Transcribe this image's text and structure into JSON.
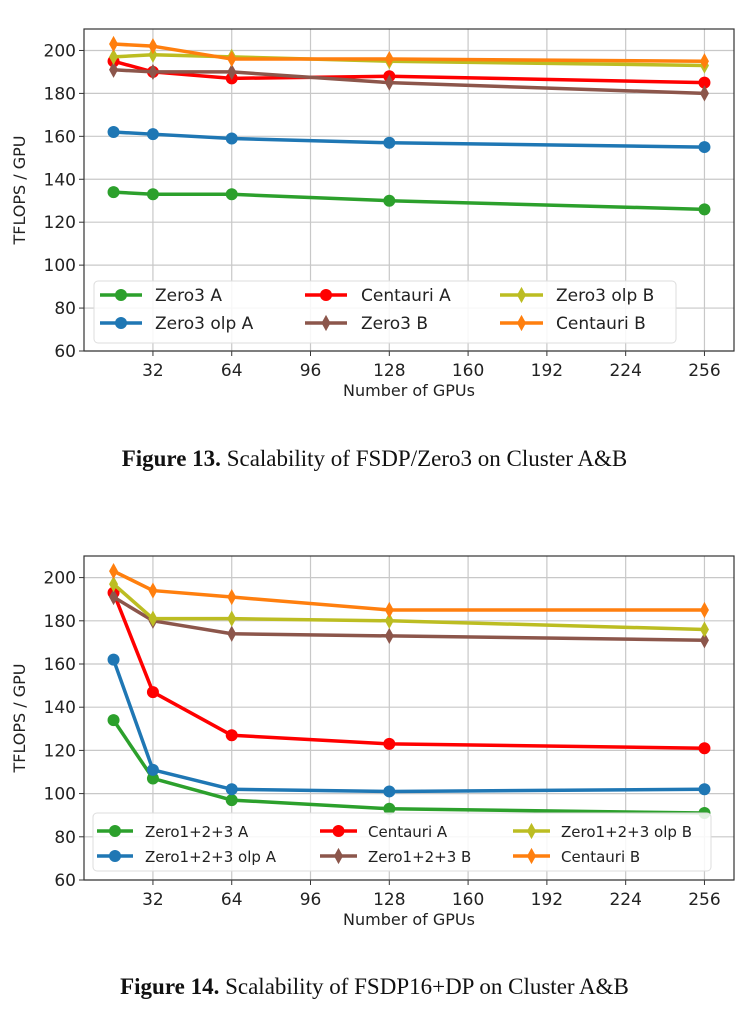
{
  "chart_data": [
    {
      "type": "line",
      "xlabel": "Number of GPUs",
      "ylabel": "TFLOPS / GPU",
      "x": [
        16,
        32,
        64,
        128,
        256
      ],
      "xticks": [
        32,
        64,
        96,
        128,
        160,
        192,
        224,
        256
      ],
      "yticks": [
        60,
        80,
        100,
        120,
        140,
        160,
        180,
        200
      ],
      "xlim": [
        4,
        268
      ],
      "ylim": [
        60,
        210
      ],
      "grid": true,
      "legend_placement": "lower-center",
      "series": [
        {
          "name": "Zero3 A",
          "color": "#2ca02c",
          "marker": "circle",
          "values": [
            134,
            133,
            133,
            130,
            126
          ]
        },
        {
          "name": "Zero3 olp A",
          "color": "#1f77b4",
          "marker": "circle",
          "values": [
            162,
            161,
            159,
            157,
            155
          ]
        },
        {
          "name": "Centauri A",
          "color": "#ff0000",
          "marker": "circle",
          "values": [
            195,
            190,
            187,
            188,
            185
          ]
        },
        {
          "name": "Zero3 B",
          "color": "#8c564b",
          "marker": "thin-diamond",
          "values": [
            191,
            190,
            190,
            185,
            180
          ]
        },
        {
          "name": "Zero3 olp B",
          "color": "#bcbd22",
          "marker": "thin-diamond",
          "values": [
            197,
            198,
            197,
            195,
            193
          ]
        },
        {
          "name": "Centauri B",
          "color": "#ff7f0e",
          "marker": "thin-diamond",
          "values": [
            203,
            202,
            196,
            196,
            195
          ]
        }
      ]
    },
    {
      "type": "line",
      "xlabel": "Number of GPUs",
      "ylabel": "TFLOPS / GPU",
      "x": [
        16,
        32,
        64,
        128,
        256
      ],
      "xticks": [
        32,
        64,
        96,
        128,
        160,
        192,
        224,
        256
      ],
      "yticks": [
        60,
        80,
        100,
        120,
        140,
        160,
        180,
        200
      ],
      "xlim": [
        4,
        268
      ],
      "ylim": [
        60,
        210
      ],
      "grid": true,
      "legend_placement": "lower-center",
      "series": [
        {
          "name": "Zero1+2+3 A",
          "color": "#2ca02c",
          "marker": "circle",
          "values": [
            134,
            107,
            97,
            93,
            91
          ]
        },
        {
          "name": "Zero1+2+3 olp A",
          "color": "#1f77b4",
          "marker": "circle",
          "values": [
            162,
            111,
            102,
            101,
            102
          ]
        },
        {
          "name": "Centauri A",
          "color": "#ff0000",
          "marker": "circle",
          "values": [
            193,
            147,
            127,
            123,
            121
          ]
        },
        {
          "name": "Zero1+2+3 B",
          "color": "#8c564b",
          "marker": "thin-diamond",
          "values": [
            191,
            180,
            174,
            173,
            171
          ]
        },
        {
          "name": "Zero1+2+3 olp B",
          "color": "#bcbd22",
          "marker": "thin-diamond",
          "values": [
            197,
            181,
            181,
            180,
            176
          ]
        },
        {
          "name": "Centauri B",
          "color": "#ff7f0e",
          "marker": "thin-diamond",
          "values": [
            203,
            194,
            191,
            185,
            185
          ]
        }
      ]
    }
  ],
  "captions": [
    {
      "label": "Figure 13.",
      "text": " Scalability of FSDP/Zero3 on Cluster A&B"
    },
    {
      "label": "Figure 14.",
      "text": " Scalability of FSDP16+DP on Cluster A&B"
    }
  ]
}
